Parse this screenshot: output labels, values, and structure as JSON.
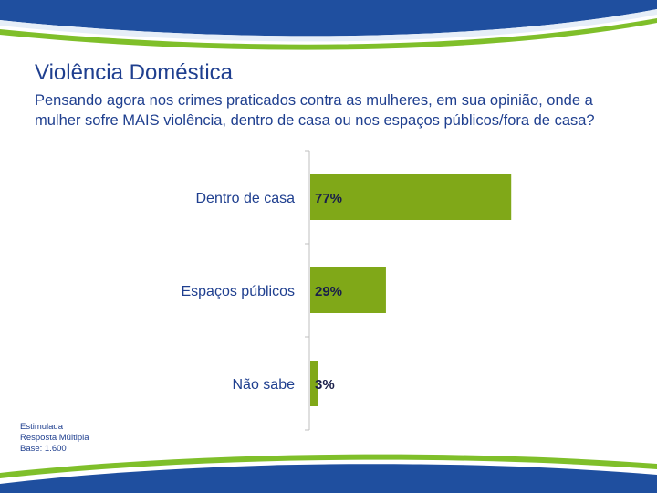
{
  "header": {
    "title": "Violência Doméstica",
    "subtitle": "Pensando agora nos crimes praticados contra as mulheres, em sua opinião, onde a mulher sofre MAIS violência, dentro de casa ou nos espaços públicos/fora de casa?"
  },
  "chart_data": {
    "type": "bar",
    "orientation": "horizontal",
    "categories": [
      "Dentro de casa",
      "Espaços públicos",
      "Não sabe"
    ],
    "values": [
      77,
      29,
      3
    ],
    "value_labels": [
      "77%",
      "29%",
      "3%"
    ],
    "xlim": [
      0,
      100
    ],
    "grid": false,
    "legend": "none",
    "bar_color": "#80a818",
    "label_color": "#1a1f4a"
  },
  "notes": {
    "line1": "Estimulada",
    "line2": "Resposta Múltipla",
    "line3": "Base: 1.600"
  },
  "colors": {
    "title": "#1f3f8f",
    "swoosh_blue": "#1f4f9f",
    "swoosh_green": "#7fbf2a"
  }
}
